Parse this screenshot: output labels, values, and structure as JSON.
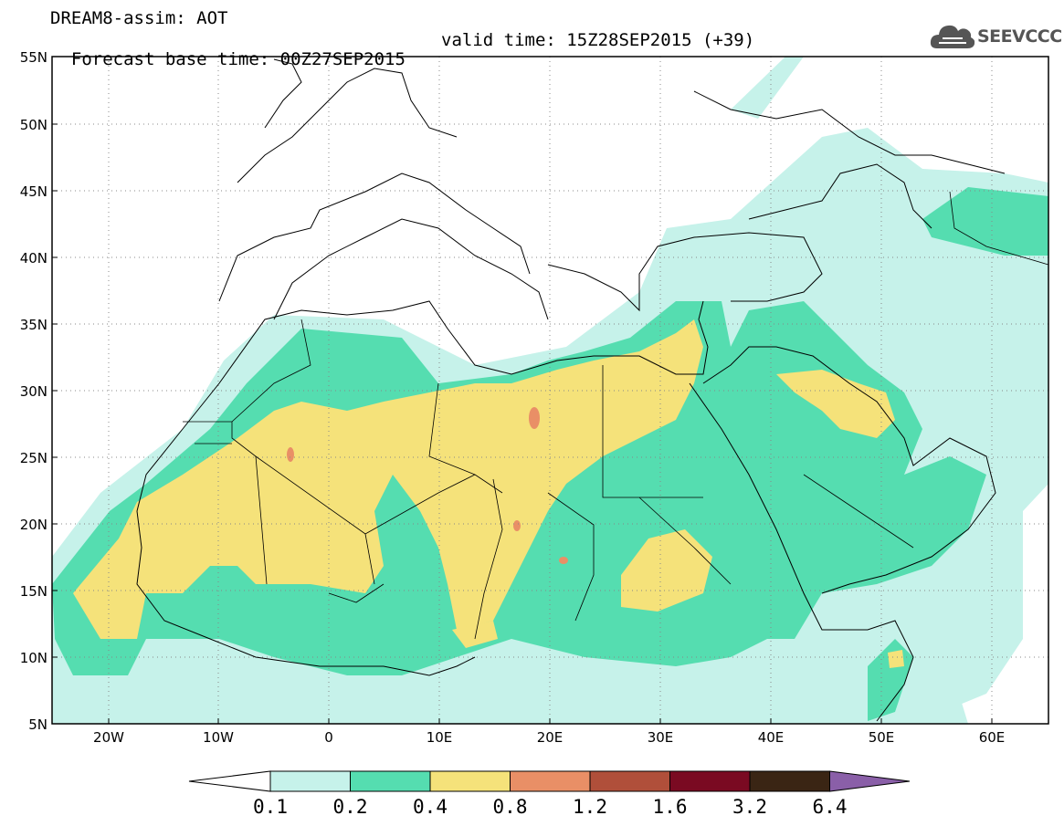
{
  "header": {
    "line1": "DREAM8-assim: AOT",
    "base_time": "Forecast base time: 00Z27SEP2015",
    "valid_time": "valid time: 15Z28SEP2015 (+39)"
  },
  "logo": {
    "text": "SEEVCCC",
    "icon": "cloud-icon"
  },
  "map": {
    "variable": "AOT",
    "lon_range": [
      -25,
      65
    ],
    "lat_range": [
      5,
      55
    ],
    "lat_ticks": [
      "5N",
      "10N",
      "15N",
      "20N",
      "25N",
      "30N",
      "35N",
      "40N",
      "45N",
      "50N",
      "55N"
    ],
    "lon_ticks": [
      "20W",
      "10W",
      "0",
      "10E",
      "20E",
      "30E",
      "40E",
      "50E",
      "60E"
    ],
    "grid": "dotted",
    "frame_color": "#000000"
  },
  "colorbar": {
    "labels": [
      "0.1",
      "0.2",
      "0.4",
      "0.8",
      "1.2",
      "1.6",
      "3.2",
      "6.4"
    ],
    "colors": [
      "#ffffff",
      "#c6f2ea",
      "#55ddb0",
      "#f5e27a",
      "#e98f66",
      "#b04f3a",
      "#7a0a22",
      "#3a2514",
      "#8a5fa8"
    ]
  }
}
